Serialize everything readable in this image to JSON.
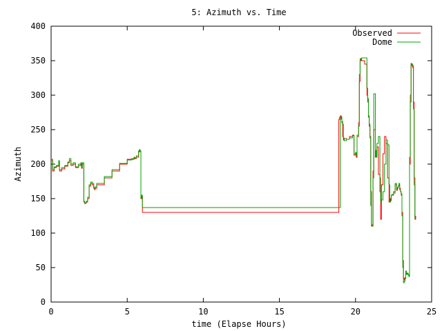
{
  "chart_data": {
    "type": "line",
    "title": "5: Azimuth vs. Time",
    "xlabel": "time (Elapse Hours)",
    "ylabel": "Azimuth",
    "xlim": [
      0,
      25
    ],
    "ylim": [
      0,
      400
    ],
    "xticks": [
      "0",
      "5",
      "10",
      "15",
      "20",
      "25"
    ],
    "yticks": [
      "0",
      "50",
      "100",
      "150",
      "200",
      "250",
      "300",
      "350",
      "400"
    ],
    "grid": false,
    "legend": "top-right",
    "series": [
      {
        "name": "Observed",
        "color": "#ff0000",
        "x": [
          0,
          0.1,
          0.2,
          0.35,
          0.5,
          0.55,
          0.7,
          0.9,
          1.1,
          1.2,
          1.3,
          1.45,
          1.6,
          1.8,
          1.95,
          2.0,
          2.05,
          2.15,
          2.2,
          2.3,
          2.4,
          2.5,
          2.6,
          2.7,
          2.8,
          2.85,
          2.9,
          3.0,
          3.5,
          4.0,
          4.5,
          5.0,
          5.3,
          5.45,
          5.5,
          5.6,
          5.75,
          5.8,
          5.85,
          5.9,
          5.95,
          6.0,
          18.88,
          18.9,
          18.95,
          19.0,
          19.05,
          19.1,
          19.15,
          19.2,
          19.25,
          19.4,
          19.6,
          19.8,
          19.9,
          20.0,
          20.05,
          20.1,
          20.2,
          20.25,
          20.3,
          20.35,
          20.4,
          20.6,
          20.75,
          20.8,
          20.85,
          20.9,
          20.95,
          21.0,
          21.05,
          21.1,
          21.15,
          21.2,
          21.3,
          21.35,
          21.4,
          21.5,
          21.6,
          21.65,
          21.7,
          21.8,
          21.9,
          22.0,
          22.1,
          22.2,
          22.25,
          22.3,
          22.35,
          22.4,
          22.5,
          22.6,
          22.7,
          22.75,
          22.8,
          22.85,
          22.9,
          22.95,
          23.0,
          23.05,
          23.1,
          23.15,
          23.2,
          23.25,
          23.3,
          23.35,
          23.4,
          23.45,
          23.5,
          23.55,
          23.6,
          23.65,
          23.7,
          23.75,
          23.8,
          23.85,
          23.9,
          23.95
        ],
        "y": [
          207,
          190,
          195,
          197,
          203,
          190,
          193,
          197,
          202,
          205,
          198,
          200,
          195,
          198,
          200,
          194,
          200,
          145,
          143,
          145,
          150,
          168,
          172,
          170,
          165,
          163,
          165,
          170,
          180,
          190,
          200,
          207,
          207,
          210,
          208,
          210,
          218,
          220,
          218,
          150,
          153,
          130,
          130,
          265,
          268,
          270,
          265,
          260,
          240,
          235,
          237,
          236,
          240,
          242,
          213,
          215,
          210,
          240,
          260,
          320,
          350,
          352,
          350,
          345,
          300,
          290,
          270,
          255,
          240,
          160,
          110,
          112,
          190,
          250,
          210,
          212,
          225,
          185,
          160,
          120,
          170,
          215,
          240,
          230,
          180,
          145,
          150,
          148,
          155,
          155,
          160,
          170,
          162,
          165,
          168,
          170,
          165,
          160,
          155,
          130,
          60,
          35,
          32,
          35,
          42,
          40,
          41,
          40,
          38,
          200,
          290,
          345,
          343,
          340,
          290,
          180,
          120,
          125
        ]
      },
      {
        "name": "Dome",
        "color": "#00a000",
        "x": [
          0,
          0.1,
          0.2,
          0.35,
          0.5,
          0.55,
          0.7,
          0.9,
          1.1,
          1.2,
          1.3,
          1.45,
          1.6,
          1.8,
          1.95,
          2.0,
          2.05,
          2.15,
          2.2,
          2.3,
          2.4,
          2.5,
          2.6,
          2.7,
          2.8,
          2.85,
          2.9,
          3.0,
          3.5,
          4.0,
          4.5,
          5.0,
          5.3,
          5.45,
          5.5,
          5.6,
          5.75,
          5.8,
          5.85,
          5.9,
          5.95,
          6.0,
          18.95,
          19.0,
          19.05,
          19.1,
          19.15,
          19.2,
          19.25,
          19.4,
          19.6,
          19.8,
          19.9,
          20.0,
          20.05,
          20.1,
          20.2,
          20.25,
          20.3,
          20.35,
          20.4,
          20.6,
          20.75,
          20.8,
          20.85,
          20.9,
          20.95,
          21.0,
          21.05,
          21.1,
          21.15,
          21.2,
          21.3,
          21.35,
          21.4,
          21.5,
          21.6,
          21.65,
          21.7,
          21.8,
          21.9,
          22.0,
          22.1,
          22.2,
          22.25,
          22.3,
          22.35,
          22.4,
          22.5,
          22.6,
          22.7,
          22.75,
          22.8,
          22.85,
          22.9,
          22.95,
          23.0,
          23.05,
          23.1,
          23.15,
          23.2,
          23.25,
          23.3,
          23.35,
          23.4,
          23.45,
          23.5,
          23.55,
          23.6,
          23.65,
          23.7,
          23.75,
          23.8,
          23.85,
          23.9,
          23.95
        ],
        "y": [
          205,
          192,
          196,
          198,
          205,
          192,
          195,
          198,
          203,
          208,
          200,
          202,
          196,
          200,
          202,
          195,
          202,
          146,
          144,
          146,
          152,
          170,
          174,
          172,
          166,
          165,
          167,
          172,
          182,
          192,
          201,
          206,
          208,
          210,
          209,
          212,
          219,
          221,
          219,
          152,
          155,
          137,
          137,
          268,
          269,
          262,
          258,
          238,
          234,
          236,
          238,
          241,
          215,
          217,
          212,
          242,
          255,
          330,
          353,
          353,
          354,
          354,
          310,
          295,
          268,
          258,
          238,
          140,
          110,
          110,
          180,
          302,
          220,
          210,
          230,
          240,
          180,
          145,
          148,
          160,
          200,
          235,
          228,
          170,
          145,
          147,
          155,
          156,
          158,
          172,
          163,
          166,
          168,
          172,
          163,
          160,
          157,
          125,
          50,
          28,
          30,
          34,
          45,
          40,
          42,
          40,
          37,
          210,
          300,
          346,
          345,
          343,
          280,
          170,
          122,
          123
        ]
      }
    ]
  }
}
